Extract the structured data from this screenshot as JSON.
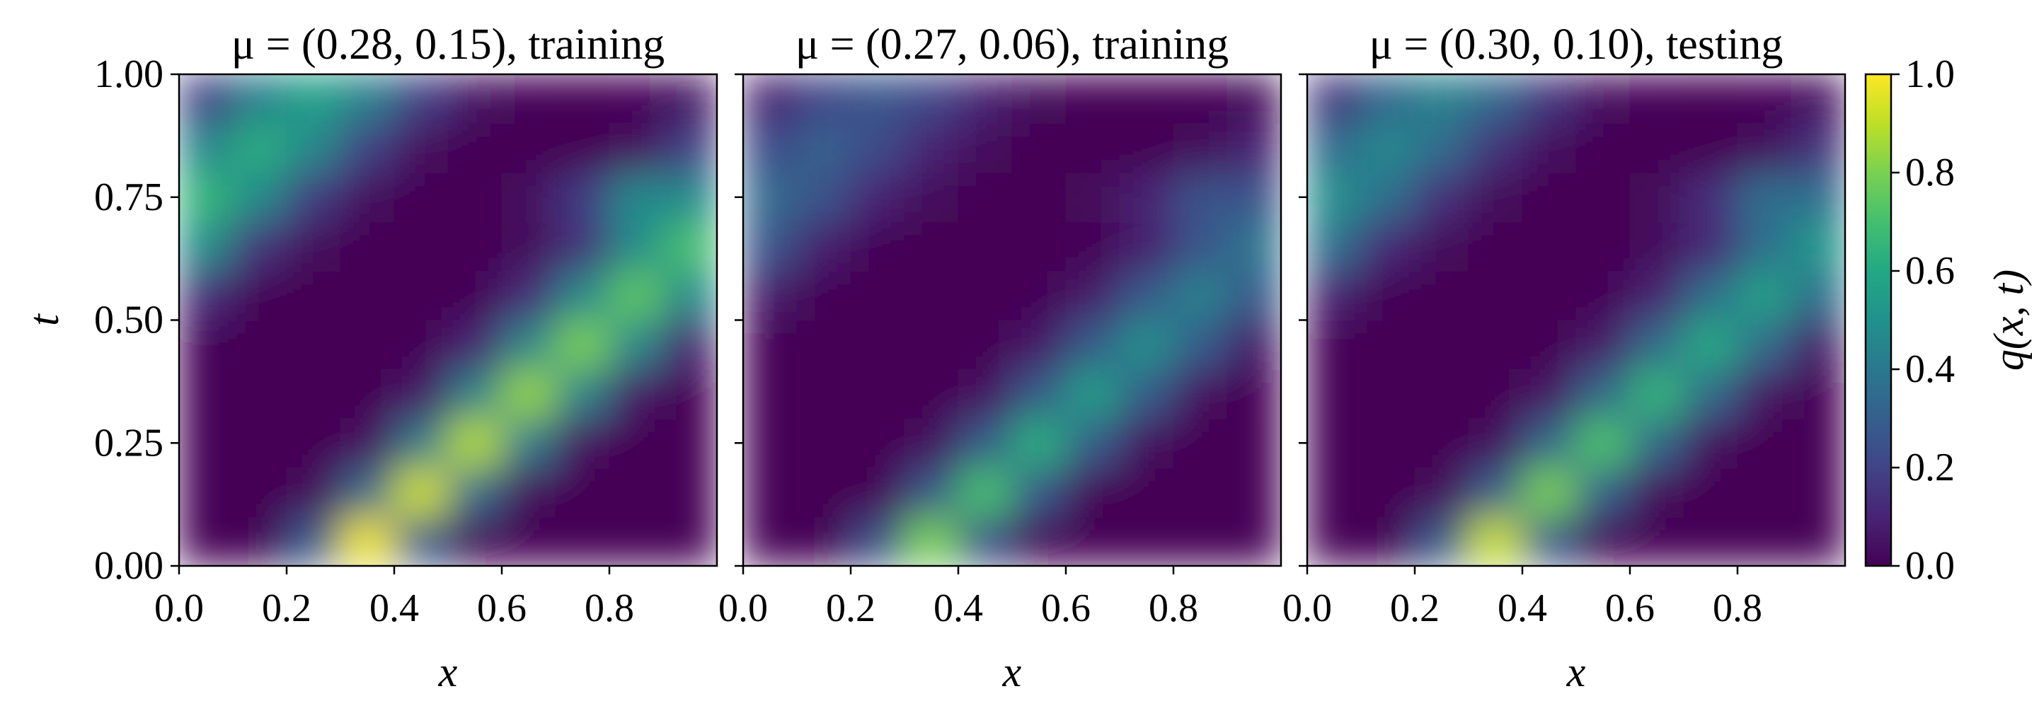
{
  "chart_data": [
    {
      "type": "heatmap",
      "title": "μ = (0.28, 0.15), training",
      "xlabel": "x",
      "ylabel": "t",
      "colormap": "viridis",
      "x": [
        0.05,
        0.15,
        0.25,
        0.35,
        0.45,
        0.55,
        0.65,
        0.75,
        0.85,
        0.95
      ],
      "y": [
        0.05,
        0.15,
        0.25,
        0.35,
        0.45,
        0.55,
        0.65,
        0.75,
        0.85,
        0.95
      ],
      "z": [
        [
          0,
          0.01,
          0.29,
          0.98,
          0.29,
          0.01,
          0,
          0,
          0,
          0
        ],
        [
          0,
          0,
          0.02,
          0.35,
          0.93,
          0.35,
          0.02,
          0,
          0,
          0
        ],
        [
          0,
          0,
          0,
          0.04,
          0.41,
          0.89,
          0.41,
          0.04,
          0,
          0
        ],
        [
          0,
          0,
          0,
          0,
          0.06,
          0.44,
          0.84,
          0.44,
          0.06,
          0
        ],
        [
          0.01,
          0,
          0,
          0,
          0.01,
          0.09,
          0.46,
          0.8,
          0.46,
          0.09
        ],
        [
          0.12,
          0.01,
          0,
          0,
          0,
          0.01,
          0.12,
          0.47,
          0.75,
          0.47
        ],
        [
          0.48,
          0.14,
          0.02,
          0,
          0,
          0,
          0.02,
          0.14,
          0.48,
          0.71
        ],
        [
          0.66,
          0.47,
          0.17,
          0.03,
          0,
          0,
          0.03,
          0.17,
          0.47,
          0.47
        ],
        [
          0.46,
          0.62,
          0.46,
          0.19,
          0.04,
          0,
          0,
          0,
          0.04,
          0.19
        ],
        [
          0.19,
          0.43,
          0.57,
          0.43,
          0.19,
          0.05,
          0.01,
          0,
          0.01,
          0.05
        ]
      ],
      "xlim": [
        0,
        1
      ],
      "ylim": [
        0,
        1
      ],
      "xticks": [
        {
          "value": 0,
          "label": "0.0"
        },
        0.2,
        0.4,
        0.6,
        0.8
      ],
      "yticks": [
        {
          "value": 0,
          "label": "0.00"
        },
        {
          "value": 0.25,
          "label": "0.25"
        },
        {
          "value": 0.5,
          "label": "0.50"
        },
        {
          "value": 0.75,
          "label": "0.75"
        },
        {
          "value": 1,
          "label": "1.00"
        }
      ]
    },
    {
      "type": "heatmap",
      "title": "μ = (0.27, 0.06), training",
      "xlabel": "x",
      "colormap": "viridis",
      "sharey": true,
      "x": [
        0.05,
        0.15,
        0.25,
        0.35,
        0.45,
        0.55,
        0.65,
        0.75,
        0.85,
        0.95
      ],
      "y": [
        0.05,
        0.15,
        0.25,
        0.35,
        0.45,
        0.55,
        0.65,
        0.75,
        0.85,
        0.95
      ],
      "z": [
        [
          0,
          0.01,
          0.24,
          0.8,
          0.24,
          0.01,
          0,
          0,
          0,
          0
        ],
        [
          0,
          0,
          0.01,
          0.27,
          0.71,
          0.27,
          0.01,
          0,
          0,
          0
        ],
        [
          0,
          0,
          0,
          0.03,
          0.29,
          0.63,
          0.29,
          0.03,
          0,
          0
        ],
        [
          0,
          0,
          0,
          0,
          0.04,
          0.29,
          0.56,
          0.29,
          0.04,
          0
        ],
        [
          0,
          0,
          0,
          0,
          0,
          0.06,
          0.29,
          0.5,
          0.29,
          0.06
        ],
        [
          0.07,
          0.01,
          0,
          0,
          0,
          0.01,
          0.07,
          0.28,
          0.44,
          0.28
        ],
        [
          0.26,
          0.08,
          0.01,
          0,
          0,
          0,
          0.01,
          0.08,
          0.26,
          0.39
        ],
        [
          0.35,
          0.25,
          0.09,
          0.02,
          0,
          0,
          0.02,
          0.09,
          0.25,
          0.25
        ],
        [
          0.23,
          0.31,
          0.23,
          0.09,
          0.02,
          0,
          0,
          0,
          0.02,
          0.09
        ],
        [
          0.09,
          0.21,
          0.27,
          0.21,
          0.09,
          0.02,
          0,
          0,
          0,
          0.02
        ]
      ],
      "xlim": [
        0,
        1
      ],
      "ylim": [
        0,
        1
      ],
      "xticks": [
        {
          "value": 0,
          "label": "0.0"
        },
        0.2,
        0.4,
        0.6,
        0.8
      ],
      "yticks": [
        0,
        0.25,
        0.5,
        0.75,
        1
      ]
    },
    {
      "type": "heatmap",
      "title": "μ = (0.30, 0.10), testing",
      "xlabel": "x",
      "colormap": "viridis",
      "sharey": true,
      "x": [
        0.05,
        0.15,
        0.25,
        0.35,
        0.45,
        0.55,
        0.65,
        0.75,
        0.85,
        0.95
      ],
      "y": [
        0.05,
        0.15,
        0.25,
        0.35,
        0.45,
        0.55,
        0.65,
        0.75,
        0.85,
        0.95
      ],
      "z": [
        [
          0,
          0.01,
          0.28,
          0.92,
          0.28,
          0.01,
          0,
          0,
          0,
          0
        ],
        [
          0,
          0,
          0.02,
          0.3,
          0.8,
          0.3,
          0.02,
          0,
          0,
          0
        ],
        [
          0,
          0,
          0,
          0.03,
          0.33,
          0.72,
          0.33,
          0.03,
          0,
          0
        ],
        [
          0,
          0,
          0,
          0,
          0.05,
          0.34,
          0.66,
          0.34,
          0.05,
          0
        ],
        [
          0,
          0,
          0,
          0,
          0,
          0.07,
          0.35,
          0.61,
          0.35,
          0.07
        ],
        [
          0.09,
          0.01,
          0,
          0,
          0,
          0.01,
          0.09,
          0.36,
          0.57,
          0.36
        ],
        [
          0.36,
          0.11,
          0.02,
          0,
          0,
          0,
          0.02,
          0.11,
          0.36,
          0.53
        ],
        [
          0.5,
          0.36,
          0.13,
          0.02,
          0,
          0,
          0.02,
          0.13,
          0.36,
          0.36
        ],
        [
          0.35,
          0.47,
          0.35,
          0.14,
          0.03,
          0,
          0,
          0,
          0.03,
          0.14
        ],
        [
          0.15,
          0.33,
          0.44,
          0.33,
          0.15,
          0.04,
          0.01,
          0,
          0.01,
          0.04
        ]
      ],
      "xlim": [
        0,
        1
      ],
      "ylim": [
        0,
        1
      ],
      "xticks": [
        {
          "value": 0,
          "label": "0.0"
        },
        0.2,
        0.4,
        0.6,
        0.8
      ],
      "yticks": [
        0,
        0.25,
        0.5,
        0.75,
        1
      ],
      "colorbar": {
        "label": "q(x, t)",
        "lim": [
          0,
          1
        ],
        "ticks": [
          {
            "value": 0,
            "label": "0.0"
          },
          0.2,
          0.4,
          0.6,
          0.8,
          {
            "value": 1,
            "label": "1.0"
          }
        ]
      }
    }
  ]
}
